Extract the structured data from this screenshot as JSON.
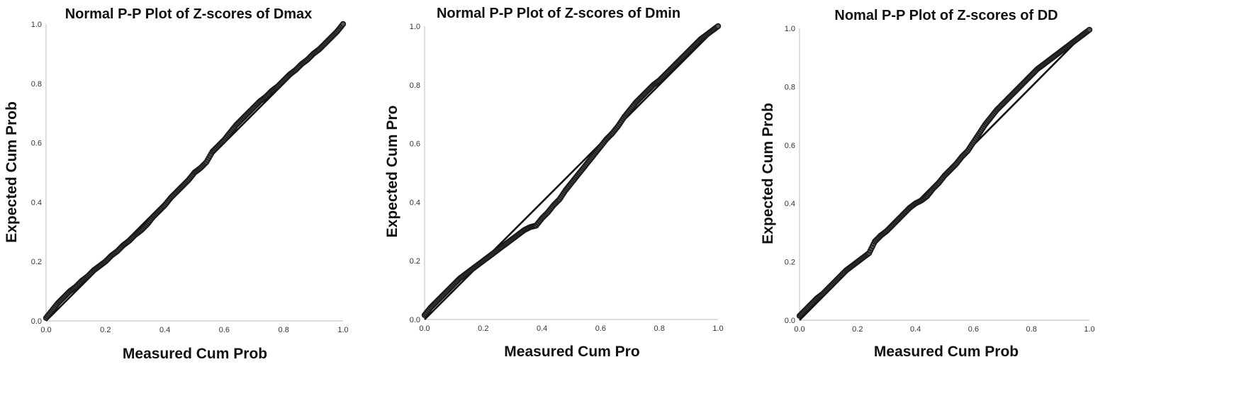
{
  "chart_data": [
    {
      "type": "scatter",
      "title": "Normal P-P Plot of Z-scores of Dmax",
      "xlabel": "Measured Cum Prob",
      "ylabel": "Expected Cum Prob",
      "xlim": [
        0,
        1
      ],
      "ylim": [
        0,
        1
      ],
      "xticks": [
        "0.0",
        "0.2",
        "0.4",
        "0.6",
        "0.8",
        "1.0"
      ],
      "yticks": [
        "0.0",
        "0.2",
        "0.4",
        "0.6",
        "0.8",
        "1.0"
      ],
      "grid": false,
      "reference_line": [
        [
          0,
          0
        ],
        [
          1,
          1
        ]
      ],
      "series": [
        {
          "x": [
            0,
            0.02,
            0.04,
            0.06,
            0.08,
            0.1,
            0.12,
            0.14,
            0.16,
            0.18,
            0.2,
            0.22,
            0.24,
            0.26,
            0.28,
            0.3,
            0.32,
            0.34,
            0.36,
            0.38,
            0.4,
            0.42,
            0.44,
            0.46,
            0.48,
            0.5,
            0.52,
            0.54,
            0.56,
            0.58,
            0.6,
            0.62,
            0.64,
            0.66,
            0.68,
            0.7,
            0.72,
            0.74,
            0.76,
            0.78,
            0.8,
            0.82,
            0.84,
            0.86,
            0.88,
            0.9,
            0.92,
            0.94,
            0.96,
            0.98,
            1
          ],
          "y": [
            0.01,
            0.035,
            0.06,
            0.08,
            0.1,
            0.115,
            0.135,
            0.15,
            0.17,
            0.185,
            0.2,
            0.22,
            0.235,
            0.255,
            0.27,
            0.29,
            0.305,
            0.325,
            0.35,
            0.37,
            0.39,
            0.415,
            0.435,
            0.455,
            0.475,
            0.5,
            0.515,
            0.535,
            0.57,
            0.59,
            0.61,
            0.635,
            0.66,
            0.68,
            0.7,
            0.72,
            0.74,
            0.755,
            0.775,
            0.79,
            0.81,
            0.83,
            0.845,
            0.865,
            0.88,
            0.9,
            0.915,
            0.935,
            0.955,
            0.975,
            1
          ]
        }
      ]
    },
    {
      "type": "scatter",
      "title": "Normal P-P Plot of Z-scores of Dmin",
      "xlabel": "Measured Cum Pro",
      "ylabel": "Expected Cum Pro",
      "xlim": [
        0,
        1
      ],
      "ylim": [
        0,
        1
      ],
      "xticks": [
        "0.0",
        "0.2",
        "0.4",
        "0.6",
        "0.8",
        "1.0"
      ],
      "yticks": [
        "0.0",
        "0.2",
        "0.4",
        "0.6",
        "0.8",
        "1.0"
      ],
      "grid": false,
      "reference_line": [
        [
          0,
          0
        ],
        [
          1,
          1
        ]
      ],
      "series": [
        {
          "x": [
            0,
            0.02,
            0.04,
            0.06,
            0.08,
            0.1,
            0.12,
            0.14,
            0.16,
            0.18,
            0.2,
            0.22,
            0.24,
            0.26,
            0.28,
            0.3,
            0.32,
            0.34,
            0.36,
            0.38,
            0.4,
            0.42,
            0.44,
            0.46,
            0.48,
            0.5,
            0.52,
            0.54,
            0.56,
            0.58,
            0.6,
            0.62,
            0.64,
            0.66,
            0.68,
            0.7,
            0.72,
            0.74,
            0.76,
            0.78,
            0.8,
            0.82,
            0.84,
            0.86,
            0.88,
            0.9,
            0.92,
            0.94,
            0.96,
            0.98,
            1
          ],
          "y": [
            0.015,
            0.04,
            0.06,
            0.08,
            0.1,
            0.12,
            0.14,
            0.155,
            0.17,
            0.185,
            0.2,
            0.215,
            0.23,
            0.245,
            0.26,
            0.275,
            0.29,
            0.305,
            0.315,
            0.32,
            0.345,
            0.365,
            0.39,
            0.41,
            0.44,
            0.465,
            0.49,
            0.515,
            0.54,
            0.565,
            0.59,
            0.615,
            0.635,
            0.66,
            0.69,
            0.715,
            0.74,
            0.76,
            0.78,
            0.8,
            0.815,
            0.835,
            0.855,
            0.875,
            0.895,
            0.915,
            0.935,
            0.955,
            0.97,
            0.985,
            1
          ]
        }
      ]
    },
    {
      "type": "scatter",
      "title": "Nomal P-P Plot of Z-scores of DD",
      "xlabel": "Measured Cum Prob",
      "ylabel": "Expected Cum Prob",
      "xlim": [
        0,
        1
      ],
      "ylim": [
        0,
        1
      ],
      "xticks": [
        "0.0",
        "0.2",
        "0.4",
        "0.6",
        "0.8",
        "1.0"
      ],
      "yticks": [
        "0.0",
        "0.2",
        "0.4",
        "0.6",
        "0.8",
        "1.0"
      ],
      "grid": false,
      "reference_line": [
        [
          0,
          0
        ],
        [
          1,
          1
        ]
      ],
      "series": [
        {
          "x": [
            0,
            0.02,
            0.04,
            0.06,
            0.08,
            0.1,
            0.12,
            0.14,
            0.16,
            0.18,
            0.2,
            0.22,
            0.24,
            0.26,
            0.28,
            0.3,
            0.32,
            0.34,
            0.36,
            0.38,
            0.4,
            0.42,
            0.44,
            0.46,
            0.48,
            0.5,
            0.52,
            0.54,
            0.56,
            0.58,
            0.6,
            0.62,
            0.64,
            0.66,
            0.68,
            0.7,
            0.72,
            0.74,
            0.76,
            0.78,
            0.8,
            0.82,
            0.84,
            0.86,
            0.88,
            0.9,
            0.92,
            0.94,
            0.96,
            0.98,
            1
          ],
          "y": [
            0.015,
            0.035,
            0.055,
            0.075,
            0.09,
            0.11,
            0.13,
            0.15,
            0.17,
            0.185,
            0.2,
            0.215,
            0.23,
            0.27,
            0.29,
            0.305,
            0.325,
            0.345,
            0.365,
            0.385,
            0.4,
            0.41,
            0.425,
            0.45,
            0.47,
            0.495,
            0.515,
            0.535,
            0.56,
            0.58,
            0.61,
            0.64,
            0.67,
            0.695,
            0.72,
            0.74,
            0.76,
            0.78,
            0.8,
            0.82,
            0.84,
            0.86,
            0.875,
            0.89,
            0.905,
            0.92,
            0.935,
            0.95,
            0.965,
            0.98,
            0.995
          ]
        }
      ]
    }
  ]
}
